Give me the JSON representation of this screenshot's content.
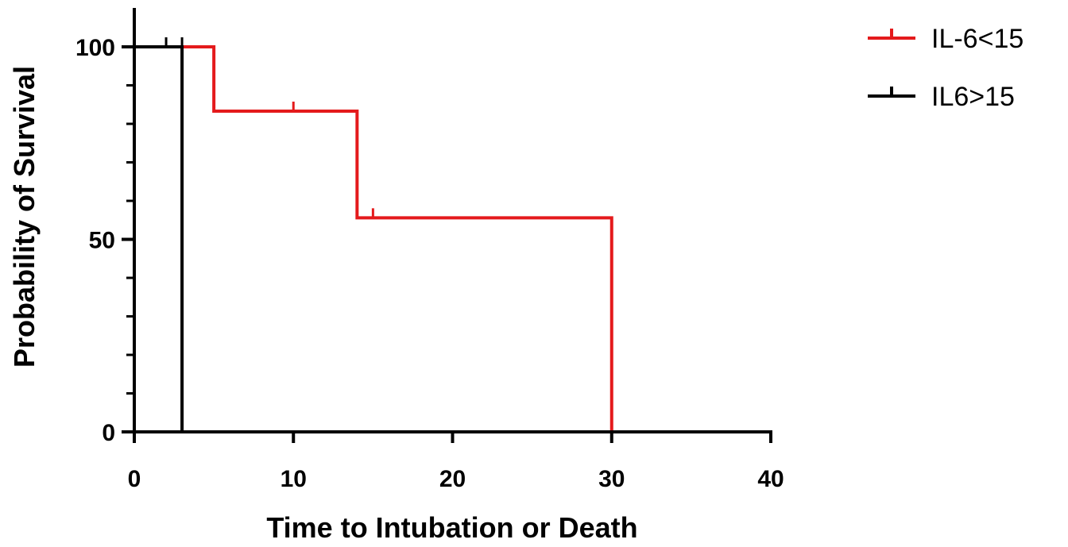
{
  "chart_data": {
    "type": "line",
    "subtype": "kaplan-meier-step",
    "title": "",
    "xlabel": "Time to Intubation or Death",
    "ylabel": "Probability of Survival",
    "xlim": [
      0,
      40
    ],
    "ylim": [
      0,
      110
    ],
    "xticks": [
      0,
      10,
      20,
      30,
      40
    ],
    "yticks": [
      0,
      50,
      100
    ],
    "x_tick_labels": [
      "0",
      "10",
      "20",
      "30",
      "40"
    ],
    "y_tick_labels": [
      "0",
      "50",
      "100"
    ],
    "grid": false,
    "legend": "top-right",
    "series": [
      {
        "name": "IL-6<15",
        "color": "#e41a1c",
        "steps": [
          {
            "x": 0,
            "y": 100
          },
          {
            "x": 5,
            "y": 83.3
          },
          {
            "x": 14,
            "y": 55.6
          },
          {
            "x": 30,
            "y": 0
          }
        ],
        "end_x": 30,
        "censored": [
          {
            "x": 5,
            "y": 83.3
          },
          {
            "x": 10,
            "y": 83.3
          },
          {
            "x": 14,
            "y": 55.6
          },
          {
            "x": 15,
            "y": 55.6
          }
        ]
      },
      {
        "name": "IL6>15",
        "color": "#000000",
        "steps": [
          {
            "x": 0,
            "y": 100
          },
          {
            "x": 3,
            "y": 0
          }
        ],
        "end_x": 3,
        "censored": [
          {
            "x": 2,
            "y": 100
          },
          {
            "x": 3,
            "y": 100
          }
        ]
      }
    ]
  }
}
